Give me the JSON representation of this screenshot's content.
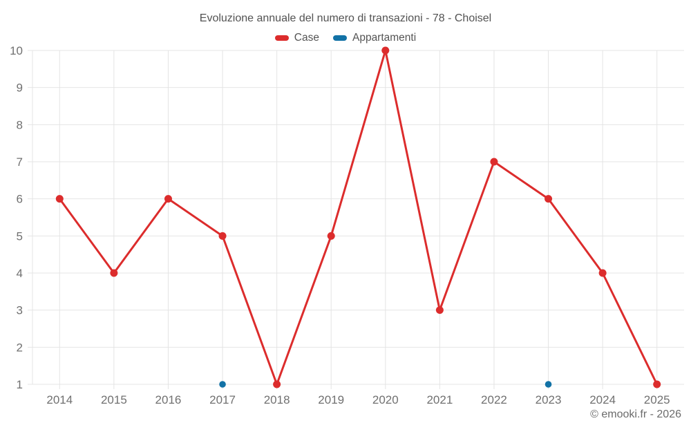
{
  "page": {
    "title": "Evoluzione annuale del numero di transazioni - 78 - Choisel",
    "watermark": "© emooki.fr - 2026"
  },
  "chart_data": {
    "type": "line",
    "title": "Evoluzione annuale del numero di transazioni - 78 - Choisel",
    "categories": [
      "2014",
      "2015",
      "2016",
      "2017",
      "2018",
      "2019",
      "2020",
      "2021",
      "2022",
      "2023",
      "2024",
      "2025"
    ],
    "series": [
      {
        "name": "Case",
        "color": "#dc2c2c",
        "marker_radius": 5.5,
        "line_width": 3,
        "values": [
          6,
          4,
          6,
          5,
          1,
          5,
          10,
          3,
          7,
          6,
          4,
          1
        ]
      },
      {
        "name": "Appartamenti",
        "color": "#1272a6",
        "marker_radius": 4.8,
        "line_width": 3,
        "values": [
          null,
          null,
          null,
          1,
          null,
          null,
          null,
          null,
          null,
          1,
          null,
          null
        ]
      }
    ],
    "xlabel": "",
    "ylabel": "",
    "ylim": [
      1,
      10
    ],
    "yticks": [
      1,
      2,
      3,
      4,
      5,
      6,
      7,
      8,
      9,
      10
    ],
    "grid": true,
    "legend_position": "top"
  },
  "colors": {
    "background": "#ffffff",
    "grid": "#e4e4e4",
    "tick_label": "#707070",
    "title_text": "#525252",
    "legend_text": "#545454",
    "watermark_text": "#6b6b6b"
  }
}
